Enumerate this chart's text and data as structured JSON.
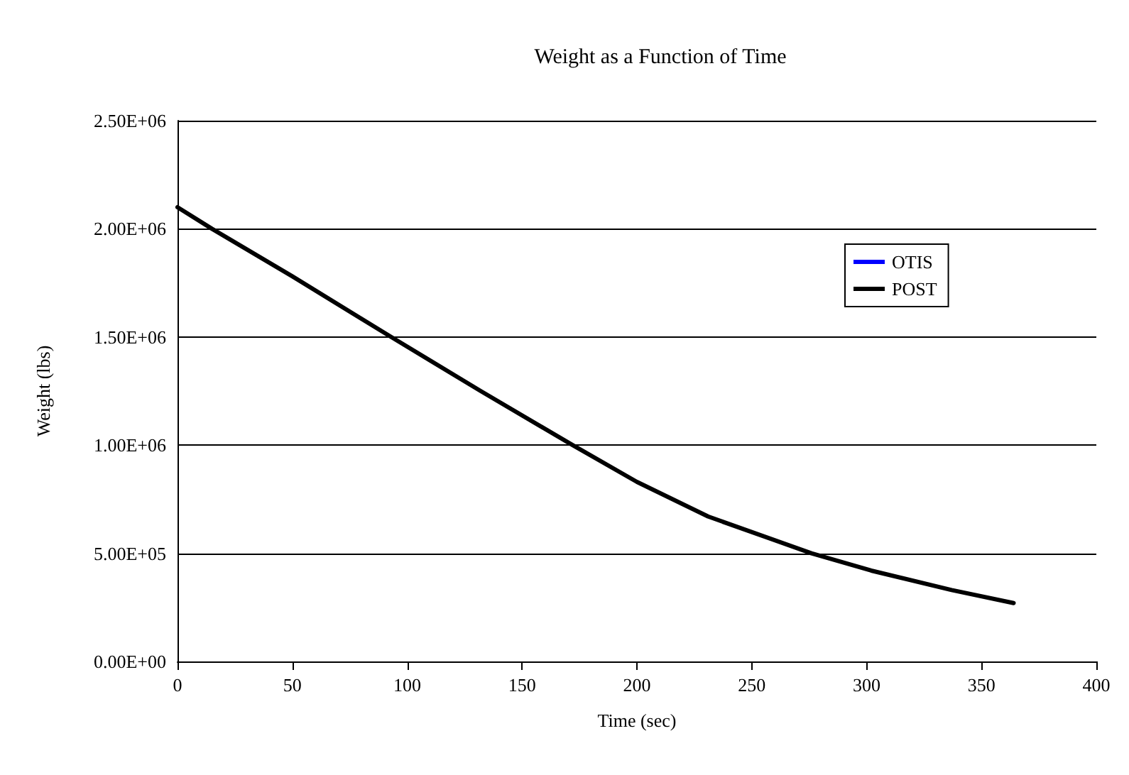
{
  "chart_data": {
    "type": "line",
    "title": "Weight as a Function of Time",
    "xlabel": "Time (sec)",
    "ylabel": "Weight (lbs)",
    "x": [
      0,
      15,
      50,
      93,
      132,
      172,
      200,
      231,
      276,
      302,
      337,
      364
    ],
    "series": [
      {
        "name": "OTIS",
        "color": "#0000ff",
        "values": [
          null,
          null,
          null,
          null,
          null,
          null,
          null,
          null,
          null,
          null,
          null,
          null
        ]
      },
      {
        "name": "POST",
        "color": "#000000",
        "values": [
          2100000,
          2000000,
          1780000,
          1500000,
          1250000,
          1000000,
          830000,
          670000,
          500000,
          420000,
          330000,
          270000
        ]
      }
    ],
    "xlim": [
      0,
      400
    ],
    "xticks": [
      0,
      50,
      100,
      150,
      200,
      250,
      300,
      350,
      400
    ],
    "ylim": [
      0,
      2500000
    ],
    "yticks": [
      {
        "value": 0,
        "label": "0.00E+00"
      },
      {
        "value": 500000,
        "label": "5.00E+05"
      },
      {
        "value": 1000000,
        "label": "1.00E+06"
      },
      {
        "value": 1500000,
        "label": "1.50E+06"
      },
      {
        "value": 2000000,
        "label": "2.00E+06"
      },
      {
        "value": 2500000,
        "label": "2.50E+06"
      }
    ],
    "grid": "y",
    "legend": "right",
    "marker": "none",
    "line_style": "solid"
  }
}
